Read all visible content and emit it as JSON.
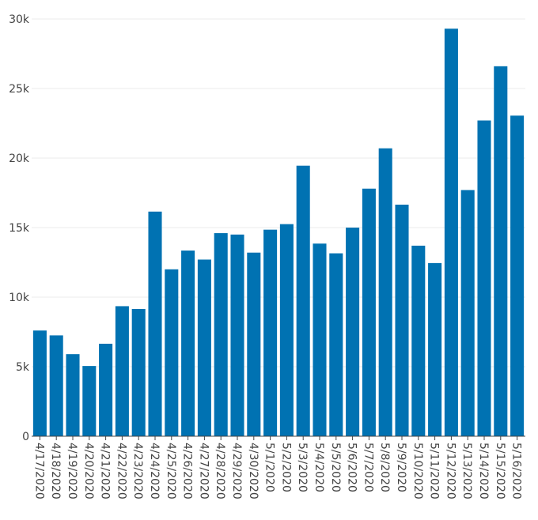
{
  "chart_data": {
    "type": "bar",
    "title": "",
    "xlabel": "",
    "ylabel": "",
    "categories": [
      "4/17/2020",
      "4/18/2020",
      "4/19/2020",
      "4/20/2020",
      "4/21/2020",
      "4/22/2020",
      "4/23/2020",
      "4/24/2020",
      "4/25/2020",
      "4/26/2020",
      "4/27/2020",
      "4/28/2020",
      "4/29/2020",
      "4/30/2020",
      "5/1/2020",
      "5/2/2020",
      "5/3/2020",
      "5/4/2020",
      "5/5/2020",
      "5/6/2020",
      "5/7/2020",
      "5/8/2020",
      "5/9/2020",
      "5/10/2020",
      "5/11/2020",
      "5/12/2020",
      "5/13/2020",
      "5/14/2020",
      "5/15/2020",
      "5/16/2020"
    ],
    "values": [
      7600,
      7250,
      5900,
      5050,
      6650,
      9350,
      9150,
      16150,
      12000,
      13350,
      12700,
      14600,
      14500,
      13200,
      14850,
      15250,
      19450,
      13850,
      13150,
      15000,
      17800,
      20700,
      16650,
      13700,
      12450,
      29300,
      17700,
      22700,
      26600,
      23050
    ],
    "ylim": [
      0,
      30000
    ],
    "yticks": [
      0,
      5000,
      10000,
      15000,
      20000,
      25000,
      30000
    ],
    "ytick_labels": [
      "0",
      "5k",
      "10k",
      "15k",
      "20k",
      "25k",
      "30k"
    ],
    "bar_color": "#0072b2",
    "grid": true,
    "legend": "none"
  }
}
